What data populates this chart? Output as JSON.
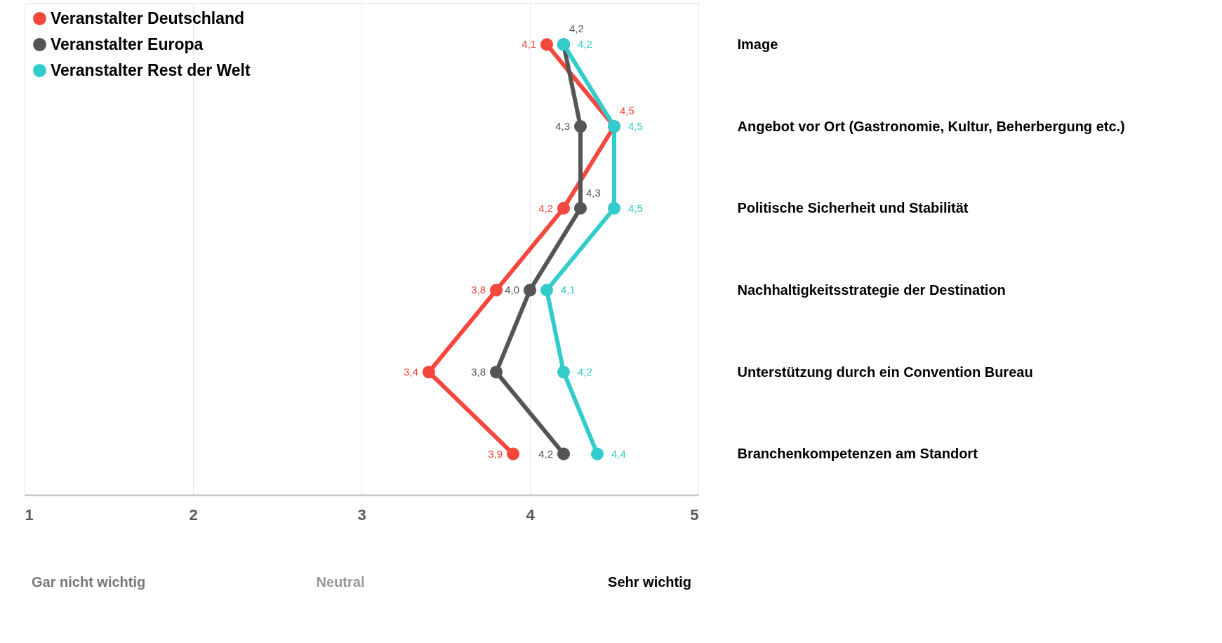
{
  "chart_data": {
    "type": "line",
    "orientation": "horizontal",
    "categories": [
      "Image",
      "Angebot vor Ort (Gastronomie, Kultur, Beherbergung etc.)",
      "Politische Sicherheit und Stabilität",
      "Nachhaltigkeitsstrategie der Destination",
      "Unterstützung durch ein Convention Bureau",
      "Branchenkompetenzen am Standort"
    ],
    "series": [
      {
        "name": "Veranstalter Deutschland",
        "color": "#f4483f",
        "values": [
          4.1,
          4.5,
          4.2,
          3.8,
          3.4,
          3.9
        ],
        "value_labels": [
          "4,1",
          "4,5",
          "4,2",
          "3,8",
          "3,4",
          "3,9"
        ]
      },
      {
        "name": "Veranstalter Europa",
        "color": "#555555",
        "values": [
          4.2,
          4.3,
          4.3,
          4.0,
          3.8,
          4.2
        ],
        "value_labels": [
          "4,2",
          "4,3",
          "4,3",
          "4,0",
          "3,8",
          "4,2"
        ]
      },
      {
        "name": "Veranstalter Rest der Welt",
        "color": "#33cccc",
        "values": [
          4.2,
          4.5,
          4.5,
          4.1,
          4.2,
          4.4
        ],
        "value_labels": [
          "4,2",
          "4,5",
          "4,5",
          "4,1",
          "4,2",
          "4,4"
        ]
      }
    ],
    "xlim": [
      1,
      5
    ],
    "xticks": [
      1,
      2,
      3,
      4,
      5
    ],
    "grid": "x",
    "legend": "top left",
    "marker": "circle",
    "line_style": "solid",
    "annotations": [
      "Gar nicht wichtig",
      "Neutral",
      "Sehr wichtig"
    ]
  }
}
